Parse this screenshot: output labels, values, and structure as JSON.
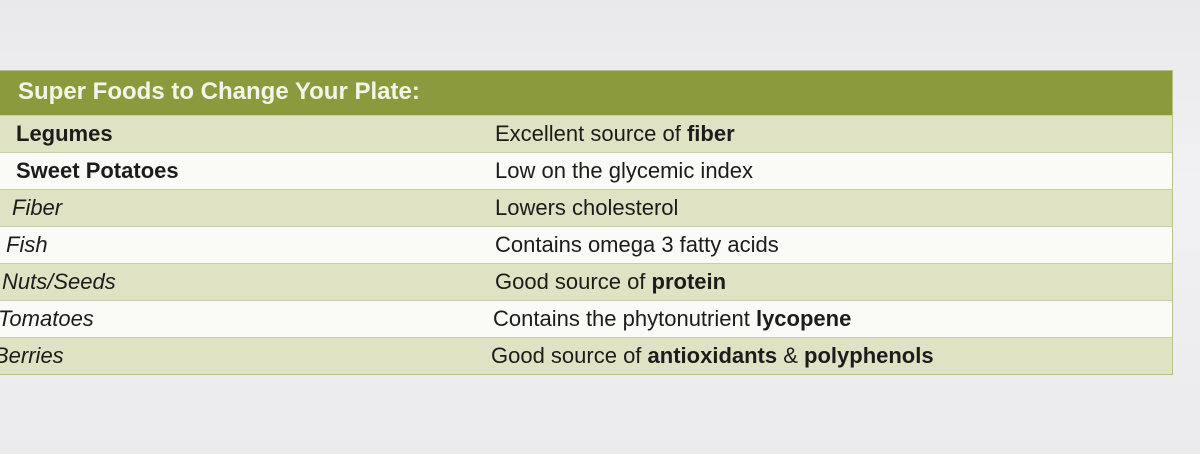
{
  "table": {
    "title": "Super Foods to Change Your Plate:",
    "rows": [
      {
        "name": "Legumes",
        "style": "bold",
        "description": [
          {
            "text": "Excellent source of ",
            "bold": false
          },
          {
            "text": "fiber",
            "bold": true
          }
        ]
      },
      {
        "name": "Sweet Potatoes",
        "style": "bold",
        "description": [
          {
            "text": "Low on the glycemic index",
            "bold": false
          }
        ]
      },
      {
        "name": "Fiber",
        "style": "italic",
        "description": [
          {
            "text": "Lowers cholesterol",
            "bold": false
          }
        ]
      },
      {
        "name": "Fish",
        "style": "italic",
        "description": [
          {
            "text": "Contains omega 3 fatty acids",
            "bold": false
          }
        ]
      },
      {
        "name": "Nuts/Seeds",
        "style": "italic",
        "description": [
          {
            "text": "Good source of ",
            "bold": false
          },
          {
            "text": "protein",
            "bold": true
          }
        ]
      },
      {
        "name": "Tomatoes",
        "style": "italic",
        "description": [
          {
            "text": "Contains the phytonutrient ",
            "bold": false
          },
          {
            "text": "lycopene",
            "bold": true
          }
        ]
      },
      {
        "name": "Berries",
        "style": "italic",
        "description": [
          {
            "text": "Good source of ",
            "bold": false
          },
          {
            "text": "antioxidants",
            "bold": true
          },
          {
            "text": " & ",
            "bold": false
          },
          {
            "text": "polyphenols",
            "bold": true
          }
        ]
      }
    ]
  }
}
